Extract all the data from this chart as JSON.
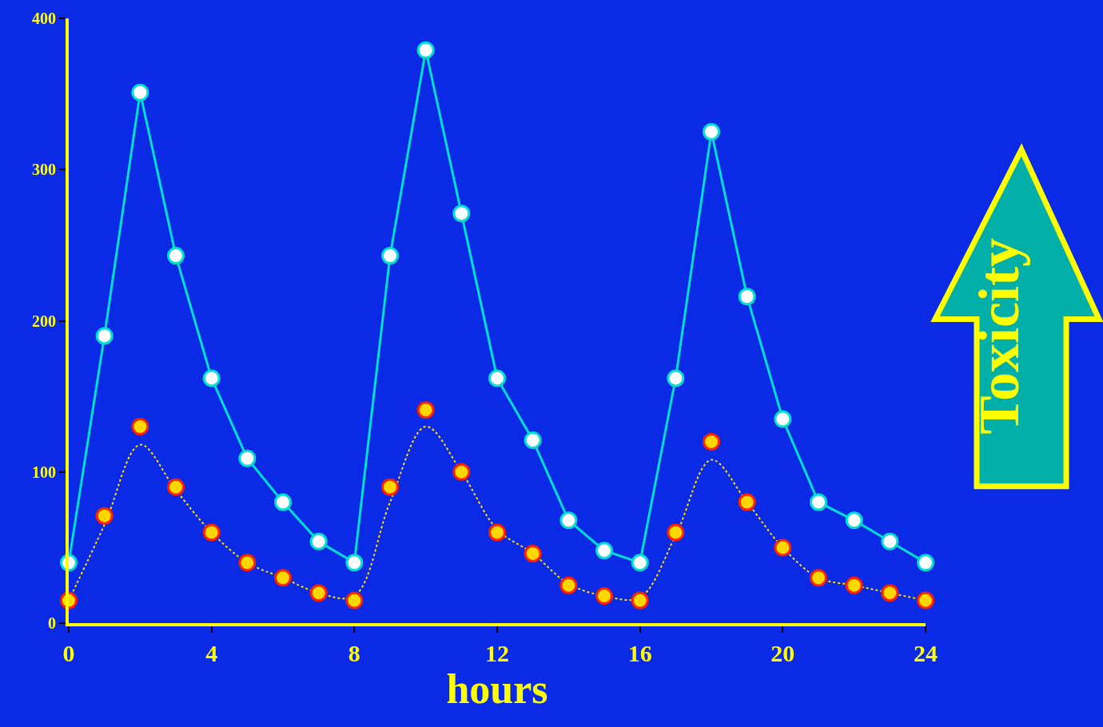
{
  "chart_data": {
    "type": "line",
    "xlabel": "hours",
    "x": [
      0,
      1,
      2,
      3,
      4,
      5,
      6,
      7,
      8,
      9,
      10,
      11,
      12,
      13,
      14,
      15,
      16,
      17,
      18,
      19,
      20,
      21,
      22,
      23,
      24
    ],
    "series": [
      {
        "color": "#00e0d0",
        "marker": "circle",
        "line_style": "solid",
        "values": [
          40,
          190,
          351,
          243,
          162,
          109,
          80,
          54,
          40,
          243,
          379,
          271,
          162,
          121,
          68,
          48,
          40,
          162,
          325,
          216,
          135,
          80,
          68,
          54,
          40
        ]
      },
      {
        "color": "#ffe000",
        "marker": "none",
        "line_style": "dotted",
        "values": [
          15,
          65,
          118,
          88,
          60,
          40,
          30,
          20,
          18,
          80,
          130,
          100,
          62,
          46,
          26,
          18,
          17,
          58,
          108,
          80,
          50,
          30,
          25,
          20,
          15
        ]
      },
      {
        "type": "scatter",
        "color": "#ffd700",
        "marker": "circle",
        "values": [
          15,
          71,
          130,
          90,
          60,
          40,
          30,
          20,
          15,
          90,
          141,
          100,
          60,
          46,
          25,
          18,
          15,
          60,
          120,
          80,
          50,
          30,
          25,
          20,
          15
        ]
      }
    ],
    "xlim": [
      0,
      24
    ],
    "xticks": [
      0,
      4,
      8,
      12,
      16,
      20,
      24
    ],
    "ylim": [
      0,
      400
    ],
    "yticks": [
      0,
      100,
      200,
      300,
      400
    ],
    "grid": false,
    "annotations": [
      "Toxicity"
    ]
  }
}
